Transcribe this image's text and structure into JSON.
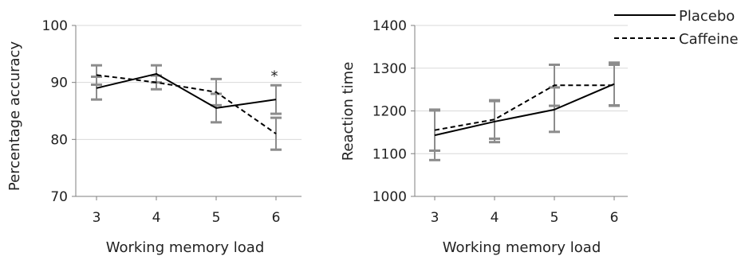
{
  "colors": {
    "grid": "#d9d9d9",
    "axis": "#7f7f7f",
    "error_bar": "#8c8c8c",
    "series_line": "#000000"
  },
  "legend": {
    "placement": "top-right",
    "entries": [
      {
        "label": "Placebo",
        "style": "solid"
      },
      {
        "label": "Caffeine",
        "style": "dashed"
      }
    ]
  },
  "chart_data": [
    {
      "type": "line",
      "title": "",
      "xlabel": "Working memory load",
      "ylabel": "Percentage accuracy",
      "categories": [
        "3",
        "4",
        "5",
        "6"
      ],
      "ylim": [
        70,
        100
      ],
      "yticks": [
        70,
        80,
        90,
        100
      ],
      "grid": true,
      "series": [
        {
          "name": "Placebo",
          "style": "solid",
          "values": [
            89,
            91.5,
            85.5,
            87
          ],
          "errors": [
            2,
            1.5,
            2.5,
            2.5
          ]
        },
        {
          "name": "Caffeine",
          "style": "dashed",
          "values": [
            91.3,
            90,
            88.3,
            81
          ],
          "errors": [
            1.7,
            1.2,
            2.3,
            2.8
          ]
        }
      ],
      "annotations": [
        {
          "category": "6",
          "text": "*"
        }
      ]
    },
    {
      "type": "line",
      "title": "",
      "xlabel": "Working memory load",
      "ylabel": "Reaction time",
      "categories": [
        "3",
        "4",
        "5",
        "6"
      ],
      "ylim": [
        1000,
        1400
      ],
      "yticks": [
        1000,
        1100,
        1200,
        1300,
        1400
      ],
      "grid": true,
      "series": [
        {
          "name": "Placebo",
          "style": "solid",
          "values": [
            1143,
            1175,
            1203,
            1263
          ],
          "errors": [
            58,
            48,
            52,
            50
          ]
        },
        {
          "name": "Caffeine",
          "style": "dashed",
          "values": [
            1155,
            1180,
            1260,
            1260
          ],
          "errors": [
            48,
            45,
            48,
            48
          ]
        }
      ],
      "annotations": []
    }
  ]
}
